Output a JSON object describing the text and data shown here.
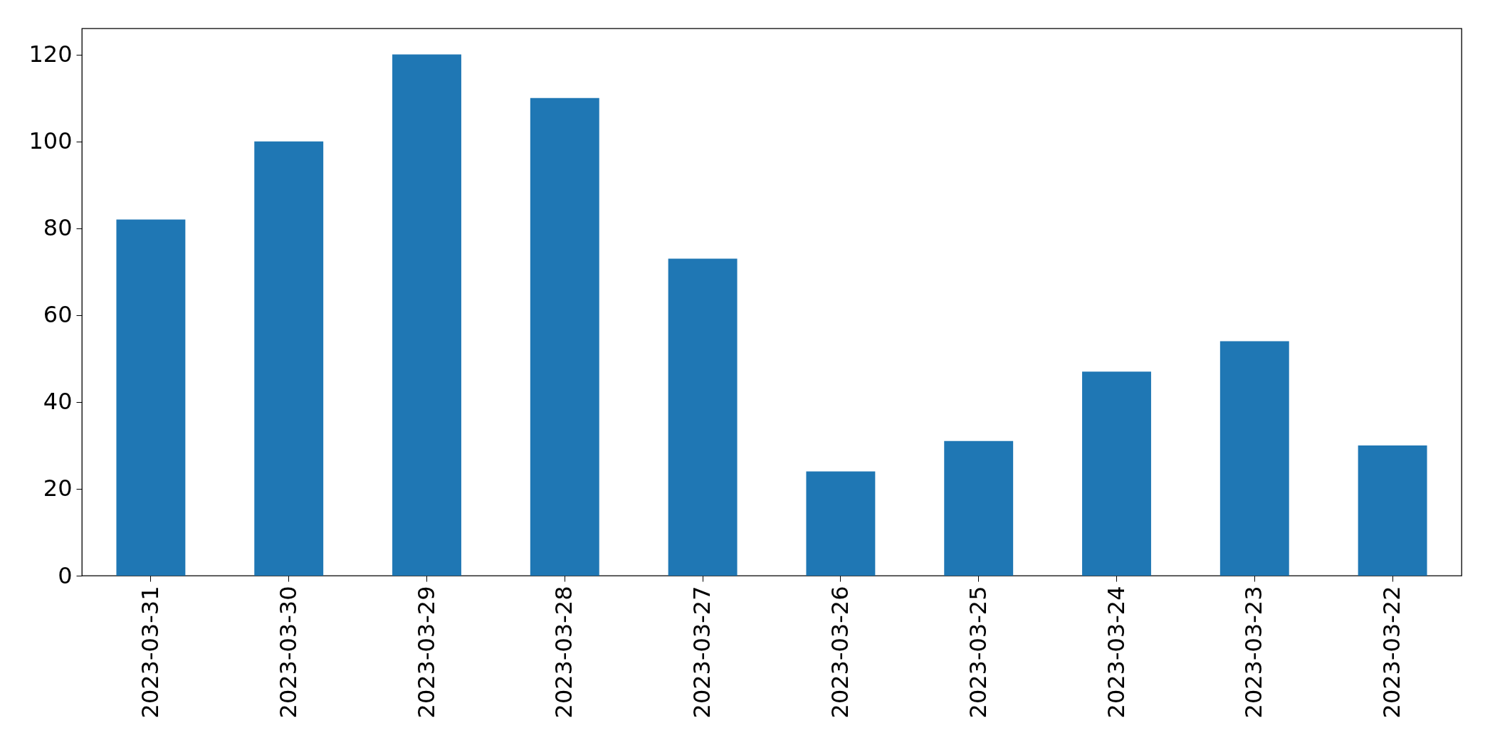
{
  "chart_data": {
    "type": "bar",
    "categories": [
      "2023-03-31",
      "2023-03-30",
      "2023-03-29",
      "2023-03-28",
      "2023-03-27",
      "2023-03-26",
      "2023-03-25",
      "2023-03-24",
      "2023-03-23",
      "2023-03-22"
    ],
    "values": [
      82,
      100,
      120,
      110,
      73,
      24,
      31,
      47,
      54,
      30
    ],
    "color": "#1f77b4",
    "ylim": [
      0,
      126
    ],
    "yticks": [
      0,
      20,
      40,
      60,
      80,
      100,
      120
    ],
    "grid": false
  }
}
